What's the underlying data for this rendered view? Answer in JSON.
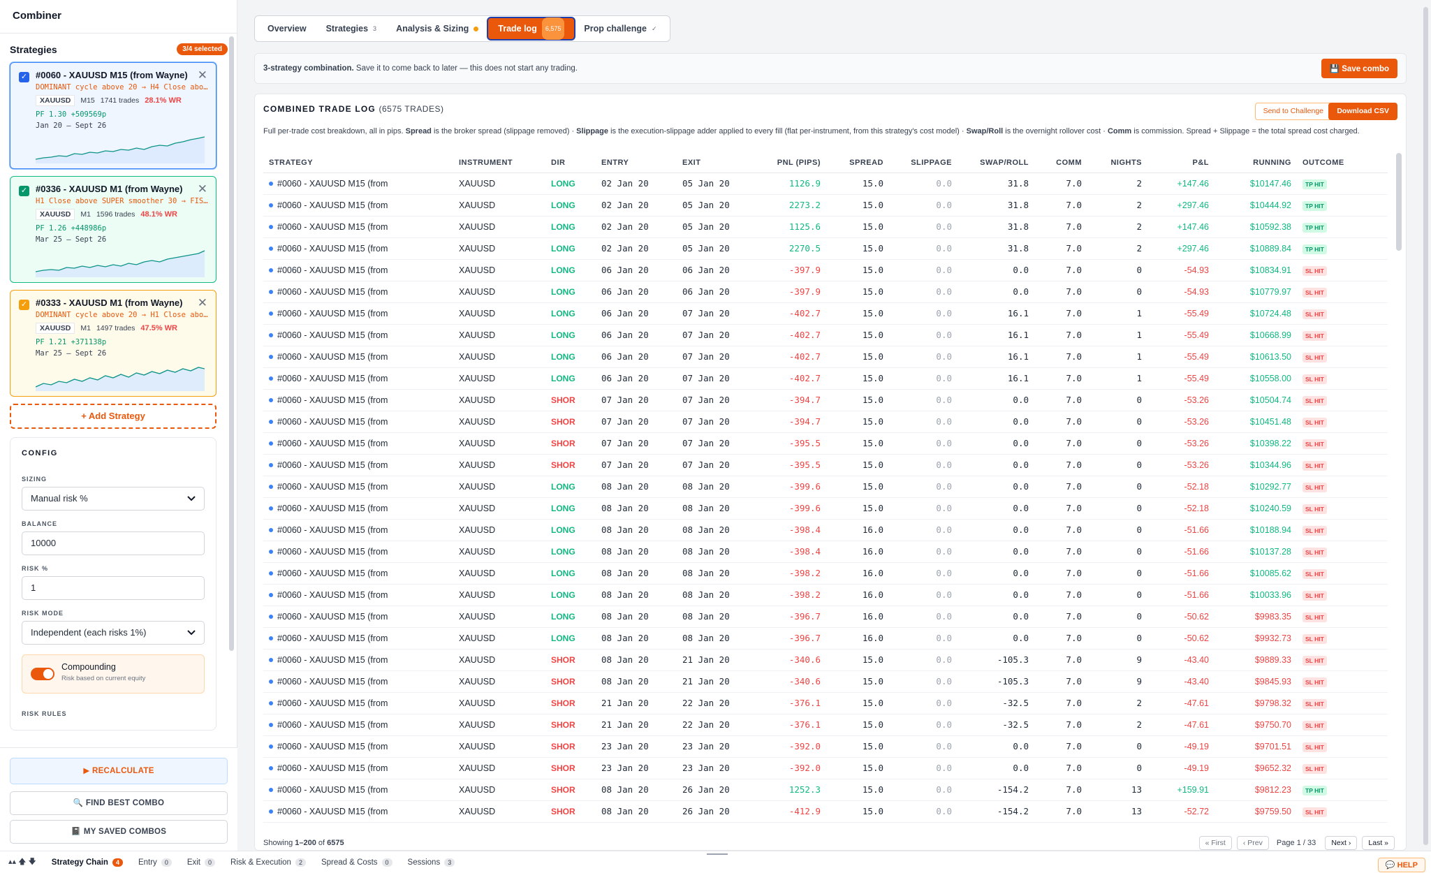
{
  "sidebar": {
    "title": "Combiner",
    "strategies_label": "Strategies",
    "selected_badge": "3/4 selected",
    "cards": [
      {
        "title": "#0060 - XAUUSD M15 (from Wayne)",
        "desc": "DOMINANT cycle above 20 → H4 Close abov…",
        "instrument": "XAUUSD",
        "tf": "M15",
        "trades": "1741 trades",
        "wr": "28.1% WR",
        "pf": "PF 1.30 +509569p",
        "dates": "Jan 20 — Sept 26",
        "color": "#3b82f6"
      },
      {
        "title": "#0336 - XAUUSD M1 (from Wayne)",
        "desc": "H1 Close above SUPER smoother 30 → FISH…",
        "instrument": "XAUUSD",
        "tf": "M1",
        "trades": "1596 trades",
        "wr": "48.1% WR",
        "pf": "PF 1.26 +448986p",
        "dates": "Mar 25 — Sept 26",
        "color": "#10b981"
      },
      {
        "title": "#0333 - XAUUSD M1 (from Wayne)",
        "desc": "DOMINANT cycle above 20 → H1 Close abov…",
        "instrument": "XAUUSD",
        "tf": "M1",
        "trades": "1497 trades",
        "wr": "47.5% WR",
        "pf": "PF 1.21 +371138p",
        "dates": "Mar 25 — Sept 26",
        "color": "#f59e0b"
      }
    ],
    "add_strategy": "+ Add Strategy",
    "config": {
      "heading": "CONFIG",
      "sizing_label": "SIZING",
      "sizing_value": "Manual risk %",
      "balance_label": "BALANCE",
      "balance_value": "10000",
      "risk_label": "RISK %",
      "risk_value": "1",
      "risk_mode_label": "RISK MODE",
      "risk_mode_value": "Independent (each risks 1%)",
      "compounding_title": "Compounding",
      "compounding_sub": "Risk based on current equity",
      "compounding_on": true,
      "risk_rules_label": "RISK RULES"
    },
    "footer": {
      "recalc": "RECALCULATE",
      "find_best": "FIND BEST COMBO",
      "saved": "MY SAVED COMBOS"
    }
  },
  "tabs": [
    {
      "label": "Overview",
      "count": ""
    },
    {
      "label": "Strategies",
      "count": "3"
    },
    {
      "label": "Analysis & Sizing",
      "count": ""
    },
    {
      "label": "Trade log",
      "count": "6,575"
    },
    {
      "label": "Prop challenge",
      "count": "✓"
    }
  ],
  "banner": {
    "bold": "3-strategy combination.",
    "text": " Save it to come back to later — this does not start any trading.",
    "save": "Save combo"
  },
  "panel": {
    "title": "COMBINED TRADE LOG",
    "count": "(6575 TRADES)",
    "send": "Send to Challenge",
    "csv": "Download CSV",
    "desc_html_parts": [
      "Full per-trade cost breakdown, all in pips. ",
      "Spread",
      " is the broker spread (slippage removed) · ",
      "Slippage",
      " is the execution-slippage adder applied to every fill (flat per-instrument, from this strategy's cost model) · ",
      "Swap/Roll",
      " is the overnight rollover cost · ",
      "Comm",
      " is commission. Spread + Slippage = the total spread cost charged."
    ]
  },
  "table": {
    "columns": [
      "STRATEGY",
      "INSTRUMENT",
      "DIR",
      "ENTRY",
      "EXIT",
      "PNL (PIPS)",
      "SPREAD",
      "SLIPPAGE",
      "SWAP/ROLL",
      "COMM",
      "NIGHTS",
      "P&L",
      "RUNNING",
      "OUTCOME"
    ],
    "rows": [
      [
        "#0060 - XAUUSD M15 (from",
        "XAUUSD",
        "LONG",
        "02 Jan 20",
        "05 Jan 20",
        "1126.9",
        "15.0",
        "0.0",
        "31.8",
        "7.0",
        "2",
        "+147.46",
        "$10147.46",
        "TP HIT"
      ],
      [
        "#0060 - XAUUSD M15 (from",
        "XAUUSD",
        "LONG",
        "02 Jan 20",
        "05 Jan 20",
        "2273.2",
        "15.0",
        "0.0",
        "31.8",
        "7.0",
        "2",
        "+297.46",
        "$10444.92",
        "TP HIT"
      ],
      [
        "#0060 - XAUUSD M15 (from",
        "XAUUSD",
        "LONG",
        "02 Jan 20",
        "05 Jan 20",
        "1125.6",
        "15.0",
        "0.0",
        "31.8",
        "7.0",
        "2",
        "+147.46",
        "$10592.38",
        "TP HIT"
      ],
      [
        "#0060 - XAUUSD M15 (from",
        "XAUUSD",
        "LONG",
        "02 Jan 20",
        "05 Jan 20",
        "2270.5",
        "15.0",
        "0.0",
        "31.8",
        "7.0",
        "2",
        "+297.46",
        "$10889.84",
        "TP HIT"
      ],
      [
        "#0060 - XAUUSD M15 (from",
        "XAUUSD",
        "LONG",
        "06 Jan 20",
        "06 Jan 20",
        "-397.9",
        "15.0",
        "0.0",
        "0.0",
        "7.0",
        "0",
        "-54.93",
        "$10834.91",
        "SL HIT"
      ],
      [
        "#0060 - XAUUSD M15 (from",
        "XAUUSD",
        "LONG",
        "06 Jan 20",
        "06 Jan 20",
        "-397.9",
        "15.0",
        "0.0",
        "0.0",
        "7.0",
        "0",
        "-54.93",
        "$10779.97",
        "SL HIT"
      ],
      [
        "#0060 - XAUUSD M15 (from",
        "XAUUSD",
        "LONG",
        "06 Jan 20",
        "07 Jan 20",
        "-402.7",
        "15.0",
        "0.0",
        "16.1",
        "7.0",
        "1",
        "-55.49",
        "$10724.48",
        "SL HIT"
      ],
      [
        "#0060 - XAUUSD M15 (from",
        "XAUUSD",
        "LONG",
        "06 Jan 20",
        "07 Jan 20",
        "-402.7",
        "15.0",
        "0.0",
        "16.1",
        "7.0",
        "1",
        "-55.49",
        "$10668.99",
        "SL HIT"
      ],
      [
        "#0060 - XAUUSD M15 (from",
        "XAUUSD",
        "LONG",
        "06 Jan 20",
        "07 Jan 20",
        "-402.7",
        "15.0",
        "0.0",
        "16.1",
        "7.0",
        "1",
        "-55.49",
        "$10613.50",
        "SL HIT"
      ],
      [
        "#0060 - XAUUSD M15 (from",
        "XAUUSD",
        "LONG",
        "06 Jan 20",
        "07 Jan 20",
        "-402.7",
        "15.0",
        "0.0",
        "16.1",
        "7.0",
        "1",
        "-55.49",
        "$10558.00",
        "SL HIT"
      ],
      [
        "#0060 - XAUUSD M15 (from",
        "XAUUSD",
        "SHOR",
        "07 Jan 20",
        "07 Jan 20",
        "-394.7",
        "15.0",
        "0.0",
        "0.0",
        "7.0",
        "0",
        "-53.26",
        "$10504.74",
        "SL HIT"
      ],
      [
        "#0060 - XAUUSD M15 (from",
        "XAUUSD",
        "SHOR",
        "07 Jan 20",
        "07 Jan 20",
        "-394.7",
        "15.0",
        "0.0",
        "0.0",
        "7.0",
        "0",
        "-53.26",
        "$10451.48",
        "SL HIT"
      ],
      [
        "#0060 - XAUUSD M15 (from",
        "XAUUSD",
        "SHOR",
        "07 Jan 20",
        "07 Jan 20",
        "-395.5",
        "15.0",
        "0.0",
        "0.0",
        "7.0",
        "0",
        "-53.26",
        "$10398.22",
        "SL HIT"
      ],
      [
        "#0060 - XAUUSD M15 (from",
        "XAUUSD",
        "SHOR",
        "07 Jan 20",
        "07 Jan 20",
        "-395.5",
        "15.0",
        "0.0",
        "0.0",
        "7.0",
        "0",
        "-53.26",
        "$10344.96",
        "SL HIT"
      ],
      [
        "#0060 - XAUUSD M15 (from",
        "XAUUSD",
        "LONG",
        "08 Jan 20",
        "08 Jan 20",
        "-399.6",
        "15.0",
        "0.0",
        "0.0",
        "7.0",
        "0",
        "-52.18",
        "$10292.77",
        "SL HIT"
      ],
      [
        "#0060 - XAUUSD M15 (from",
        "XAUUSD",
        "LONG",
        "08 Jan 20",
        "08 Jan 20",
        "-399.6",
        "15.0",
        "0.0",
        "0.0",
        "7.0",
        "0",
        "-52.18",
        "$10240.59",
        "SL HIT"
      ],
      [
        "#0060 - XAUUSD M15 (from",
        "XAUUSD",
        "LONG",
        "08 Jan 20",
        "08 Jan 20",
        "-398.4",
        "16.0",
        "0.0",
        "0.0",
        "7.0",
        "0",
        "-51.66",
        "$10188.94",
        "SL HIT"
      ],
      [
        "#0060 - XAUUSD M15 (from",
        "XAUUSD",
        "LONG",
        "08 Jan 20",
        "08 Jan 20",
        "-398.4",
        "16.0",
        "0.0",
        "0.0",
        "7.0",
        "0",
        "-51.66",
        "$10137.28",
        "SL HIT"
      ],
      [
        "#0060 - XAUUSD M15 (from",
        "XAUUSD",
        "LONG",
        "08 Jan 20",
        "08 Jan 20",
        "-398.2",
        "16.0",
        "0.0",
        "0.0",
        "7.0",
        "0",
        "-51.66",
        "$10085.62",
        "SL HIT"
      ],
      [
        "#0060 - XAUUSD M15 (from",
        "XAUUSD",
        "LONG",
        "08 Jan 20",
        "08 Jan 20",
        "-398.2",
        "16.0",
        "0.0",
        "0.0",
        "7.0",
        "0",
        "-51.66",
        "$10033.96",
        "SL HIT"
      ],
      [
        "#0060 - XAUUSD M15 (from",
        "XAUUSD",
        "LONG",
        "08 Jan 20",
        "08 Jan 20",
        "-396.7",
        "16.0",
        "0.0",
        "0.0",
        "7.0",
        "0",
        "-50.62",
        "$9983.35",
        "SL HIT"
      ],
      [
        "#0060 - XAUUSD M15 (from",
        "XAUUSD",
        "LONG",
        "08 Jan 20",
        "08 Jan 20",
        "-396.7",
        "16.0",
        "0.0",
        "0.0",
        "7.0",
        "0",
        "-50.62",
        "$9932.73",
        "SL HIT"
      ],
      [
        "#0060 - XAUUSD M15 (from",
        "XAUUSD",
        "SHOR",
        "08 Jan 20",
        "21 Jan 20",
        "-340.6",
        "15.0",
        "0.0",
        "-105.3",
        "7.0",
        "9",
        "-43.40",
        "$9889.33",
        "SL HIT"
      ],
      [
        "#0060 - XAUUSD M15 (from",
        "XAUUSD",
        "SHOR",
        "08 Jan 20",
        "21 Jan 20",
        "-340.6",
        "15.0",
        "0.0",
        "-105.3",
        "7.0",
        "9",
        "-43.40",
        "$9845.93",
        "SL HIT"
      ],
      [
        "#0060 - XAUUSD M15 (from",
        "XAUUSD",
        "SHOR",
        "21 Jan 20",
        "22 Jan 20",
        "-376.1",
        "15.0",
        "0.0",
        "-32.5",
        "7.0",
        "2",
        "-47.61",
        "$9798.32",
        "SL HIT"
      ],
      [
        "#0060 - XAUUSD M15 (from",
        "XAUUSD",
        "SHOR",
        "21 Jan 20",
        "22 Jan 20",
        "-376.1",
        "15.0",
        "0.0",
        "-32.5",
        "7.0",
        "2",
        "-47.61",
        "$9750.70",
        "SL HIT"
      ],
      [
        "#0060 - XAUUSD M15 (from",
        "XAUUSD",
        "SHOR",
        "23 Jan 20",
        "23 Jan 20",
        "-392.0",
        "15.0",
        "0.0",
        "0.0",
        "7.0",
        "0",
        "-49.19",
        "$9701.51",
        "SL HIT"
      ],
      [
        "#0060 - XAUUSD M15 (from",
        "XAUUSD",
        "SHOR",
        "23 Jan 20",
        "23 Jan 20",
        "-392.0",
        "15.0",
        "0.0",
        "0.0",
        "7.0",
        "0",
        "-49.19",
        "$9652.32",
        "SL HIT"
      ],
      [
        "#0060 - XAUUSD M15 (from",
        "XAUUSD",
        "SHOR",
        "08 Jan 20",
        "26 Jan 20",
        "1252.3",
        "15.0",
        "0.0",
        "-154.2",
        "7.0",
        "13",
        "+159.91",
        "$9812.23",
        "TP HIT"
      ],
      [
        "#0060 - XAUUSD M15 (from",
        "XAUUSD",
        "SHOR",
        "08 Jan 20",
        "26 Jan 20",
        "-412.9",
        "15.0",
        "0.0",
        "-154.2",
        "7.0",
        "13",
        "-52.72",
        "$9759.50",
        "SL HIT"
      ]
    ]
  },
  "pager": {
    "showing_prefix": "Showing ",
    "range": "1–200",
    "of": " of ",
    "total": "6575",
    "first": "« First",
    "prev": "‹ Prev",
    "page_label": "Page",
    "page": "1",
    "sep": "/",
    "pages": "33",
    "next": "Next ›",
    "last": "Last »"
  },
  "bottom_tabs": [
    {
      "label": "Strategy Chain",
      "count": "4"
    },
    {
      "label": "Entry",
      "count": "0"
    },
    {
      "label": "Exit",
      "count": "0"
    },
    {
      "label": "Risk & Execution",
      "count": "2"
    },
    {
      "label": "Spread & Costs",
      "count": "0"
    },
    {
      "label": "Sessions",
      "count": "3"
    }
  ],
  "help": "HELP",
  "colors": {
    "accent": "#ea580c",
    "positive": "#10b981",
    "negative": "#ef4444",
    "link": "#2563eb"
  }
}
